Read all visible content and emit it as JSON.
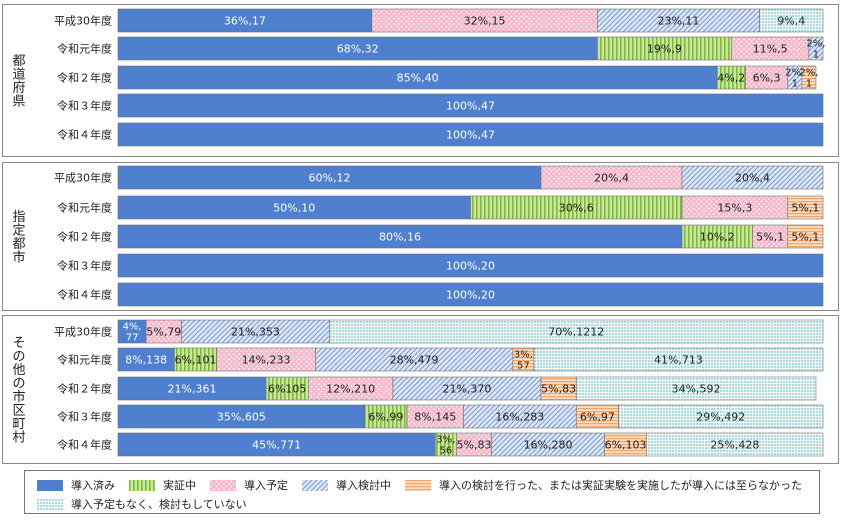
{
  "colors": {
    "implemented": "#4f7fcf",
    "demonstration": "#a8d66a",
    "planned": "#f6b8c8",
    "considering": "#a8c0e6",
    "not_adopted": "#f6b98a",
    "none": "#8fd8dc",
    "frame": "#888888"
  },
  "legend": {
    "items": [
      {
        "key": "implemented",
        "label": "導入済み",
        "pattern": "solid-blue"
      },
      {
        "key": "demonstration",
        "label": "実証中",
        "pattern": "green-vertical-stripes"
      },
      {
        "key": "planned",
        "label": "導入予定",
        "pattern": "pink-dots"
      },
      {
        "key": "considering",
        "label": "導入検討中",
        "pattern": "blue-diagonal-hatch"
      },
      {
        "key": "not_adopted",
        "label": "導入の検討を行った、または実証実験を実施したが導入には至らなかった",
        "pattern": "orange-horizontal-stripes"
      },
      {
        "key": "none",
        "label": "導入予定もなく、検討もしていない",
        "pattern": "teal-dots"
      }
    ]
  },
  "chart_data": {
    "type": "bar",
    "orientation": "horizontal",
    "stacked": true,
    "percent_stacked": true,
    "series_order": [
      "implemented",
      "demonstration",
      "planned",
      "considering",
      "not_adopted",
      "none"
    ],
    "groups": [
      {
        "name": "都道府県",
        "rows": [
          {
            "year": "平成30年度",
            "segments": [
              {
                "key": "implemented",
                "pct": 36,
                "label": "36%,17"
              },
              {
                "key": "planned",
                "pct": 32,
                "label": "32%,15"
              },
              {
                "key": "considering",
                "pct": 23,
                "label": "23%,11"
              },
              {
                "key": "none",
                "pct": 9,
                "label": "9%,4"
              }
            ]
          },
          {
            "year": "令和元年度",
            "segments": [
              {
                "key": "implemented",
                "pct": 68,
                "label": "68%,32"
              },
              {
                "key": "demonstration",
                "pct": 19,
                "label": "19%,9"
              },
              {
                "key": "planned",
                "pct": 11,
                "label": "11%,5"
              },
              {
                "key": "considering",
                "pct": 2,
                "label": "2%,1"
              }
            ]
          },
          {
            "year": "令和２年度",
            "segments": [
              {
                "key": "implemented",
                "pct": 85,
                "label": "85%,40"
              },
              {
                "key": "demonstration",
                "pct": 4,
                "label": "4%,2"
              },
              {
                "key": "planned",
                "pct": 6,
                "label": "6%,3"
              },
              {
                "key": "considering",
                "pct": 2,
                "label": "2%,1"
              },
              {
                "key": "not_adopted",
                "pct": 2,
                "label": "2%,1"
              }
            ]
          },
          {
            "year": "令和３年度",
            "segments": [
              {
                "key": "implemented",
                "pct": 100,
                "label": "100%,47"
              }
            ]
          },
          {
            "year": "令和４年度",
            "segments": [
              {
                "key": "implemented",
                "pct": 100,
                "label": "100%,47"
              }
            ]
          }
        ]
      },
      {
        "name": "指定都市",
        "rows": [
          {
            "year": "平成30年度",
            "segments": [
              {
                "key": "implemented",
                "pct": 60,
                "label": "60%,12"
              },
              {
                "key": "planned",
                "pct": 20,
                "label": "20%,4"
              },
              {
                "key": "considering",
                "pct": 20,
                "label": "20%,4"
              }
            ]
          },
          {
            "year": "令和元年度",
            "segments": [
              {
                "key": "implemented",
                "pct": 50,
                "label": "50%,10"
              },
              {
                "key": "demonstration",
                "pct": 30,
                "label": "30%,6"
              },
              {
                "key": "planned",
                "pct": 15,
                "label": "15%,3"
              },
              {
                "key": "not_adopted",
                "pct": 5,
                "label": "5%,1"
              }
            ]
          },
          {
            "year": "令和２年度",
            "segments": [
              {
                "key": "implemented",
                "pct": 80,
                "label": "80%,16"
              },
              {
                "key": "demonstration",
                "pct": 10,
                "label": "10%,2"
              },
              {
                "key": "planned",
                "pct": 5,
                "label": "5%,1"
              },
              {
                "key": "not_adopted",
                "pct": 5,
                "label": "5%,1"
              }
            ]
          },
          {
            "year": "令和３年度",
            "segments": [
              {
                "key": "implemented",
                "pct": 100,
                "label": "100%,20"
              }
            ]
          },
          {
            "year": "令和４年度",
            "segments": [
              {
                "key": "implemented",
                "pct": 100,
                "label": "100%,20"
              }
            ]
          }
        ]
      },
      {
        "name": "その他の市区町村",
        "rows": [
          {
            "year": "平成30年度",
            "segments": [
              {
                "key": "implemented",
                "pct": 4,
                "label": "4%,77"
              },
              {
                "key": "planned",
                "pct": 5,
                "label": "5%,79"
              },
              {
                "key": "considering",
                "pct": 21,
                "label": "21%,353"
              },
              {
                "key": "none",
                "pct": 70,
                "label": "70%,1212"
              }
            ]
          },
          {
            "year": "令和元年度",
            "segments": [
              {
                "key": "implemented",
                "pct": 8,
                "label": "8%,138"
              },
              {
                "key": "demonstration",
                "pct": 6,
                "label": "6%,101"
              },
              {
                "key": "planned",
                "pct": 14,
                "label": "14%,233"
              },
              {
                "key": "considering",
                "pct": 28,
                "label": "28%,479"
              },
              {
                "key": "not_adopted",
                "pct": 3,
                "label": "3%,57"
              },
              {
                "key": "none",
                "pct": 41,
                "label": "41%,713"
              }
            ]
          },
          {
            "year": "令和２年度",
            "segments": [
              {
                "key": "implemented",
                "pct": 21,
                "label": "21%,361"
              },
              {
                "key": "demonstration",
                "pct": 6,
                "label": "6%105"
              },
              {
                "key": "planned",
                "pct": 12,
                "label": "12%,210"
              },
              {
                "key": "considering",
                "pct": 21,
                "label": "21%,370"
              },
              {
                "key": "not_adopted",
                "pct": 5,
                "label": "5%,83"
              },
              {
                "key": "none",
                "pct": 34,
                "label": "34%,592"
              }
            ]
          },
          {
            "year": "令和３年度",
            "segments": [
              {
                "key": "implemented",
                "pct": 35,
                "label": "35%,605"
              },
              {
                "key": "demonstration",
                "pct": 6,
                "label": "6%,99"
              },
              {
                "key": "planned",
                "pct": 8,
                "label": "8%,145"
              },
              {
                "key": "considering",
                "pct": 16,
                "label": "16%,283"
              },
              {
                "key": "not_adopted",
                "pct": 6,
                "label": "6%,97"
              },
              {
                "key": "none",
                "pct": 29,
                "label": "29%,492"
              }
            ]
          },
          {
            "year": "令和４年度",
            "segments": [
              {
                "key": "implemented",
                "pct": 45,
                "label": "45%,771"
              },
              {
                "key": "demonstration",
                "pct": 3,
                "label": "3%,56"
              },
              {
                "key": "planned",
                "pct": 5,
                "label": "5%,83"
              },
              {
                "key": "considering",
                "pct": 16,
                "label": "16%,280"
              },
              {
                "key": "not_adopted",
                "pct": 6,
                "label": "6%,103"
              },
              {
                "key": "none",
                "pct": 25,
                "label": "25%,428"
              }
            ]
          }
        ]
      }
    ]
  }
}
